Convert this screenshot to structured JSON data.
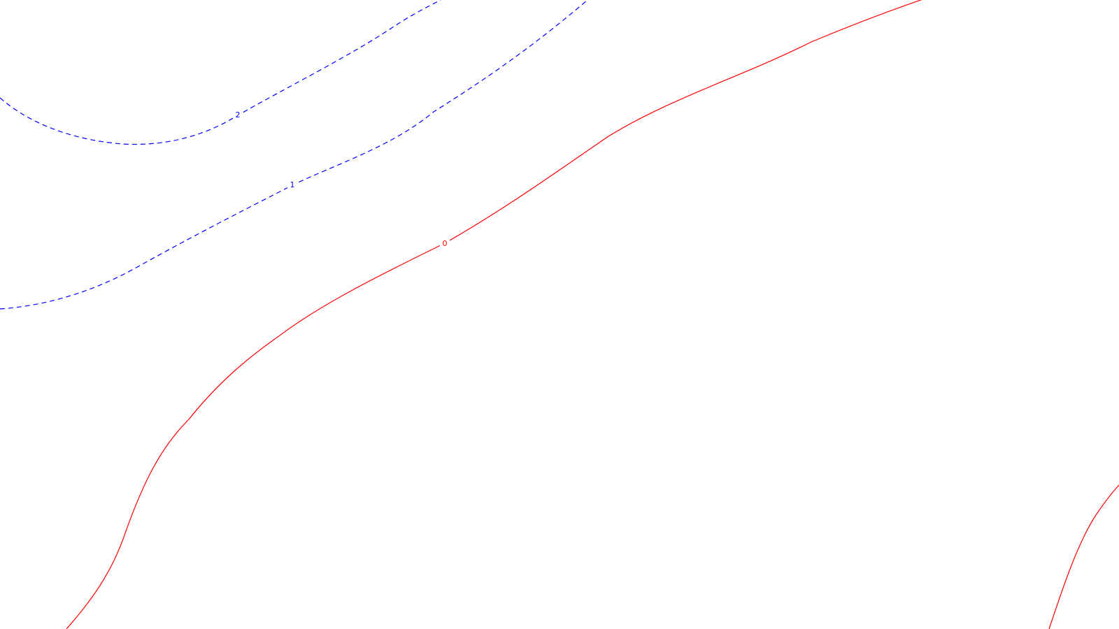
{
  "chart_data": {
    "type": "contour",
    "title": "",
    "xlabel": "",
    "ylabel": "",
    "grid": false,
    "legend": "none",
    "levels": [
      {
        "label": "2",
        "value": 2,
        "color": "#0000ff",
        "style": "dashed"
      },
      {
        "label": "1",
        "value": 1,
        "color": "#0000ff",
        "style": "dashed"
      },
      {
        "label": "0",
        "value": 0,
        "color": "#ff0000",
        "style": "solid"
      }
    ],
    "colors": {
      "positive": "#0000ff",
      "zero": "#ff0000",
      "background": "#ffffff"
    }
  }
}
